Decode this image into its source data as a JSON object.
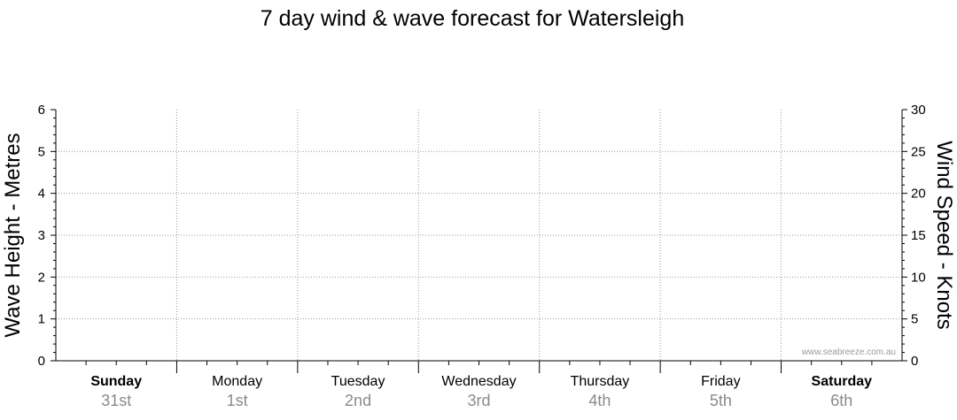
{
  "chart_data": {
    "type": "line",
    "title": "7 day wind & wave forecast for Watersleigh",
    "left_axis": {
      "label": "Wave Height - Metres",
      "ylim": [
        0,
        6
      ],
      "ticks": [
        "0",
        "1",
        "2",
        "3",
        "4",
        "5",
        "6"
      ]
    },
    "right_axis": {
      "label": "Wind Speed - Knots",
      "ylim": [
        0,
        30
      ],
      "ticks": [
        "0",
        "5",
        "10",
        "15",
        "20",
        "25",
        "30"
      ]
    },
    "days": [
      {
        "name": "Sunday",
        "date": "31st",
        "bold": true
      },
      {
        "name": "Monday",
        "date": "1st",
        "bold": false
      },
      {
        "name": "Tuesday",
        "date": "2nd",
        "bold": false
      },
      {
        "name": "Wednesday",
        "date": "3rd",
        "bold": false
      },
      {
        "name": "Thursday",
        "date": "4th",
        "bold": false
      },
      {
        "name": "Friday",
        "date": "5th",
        "bold": false
      },
      {
        "name": "Saturday",
        "date": "6th",
        "bold": true
      }
    ],
    "series": [],
    "grid": true,
    "watermark": "www.seabreeze.com.au"
  }
}
